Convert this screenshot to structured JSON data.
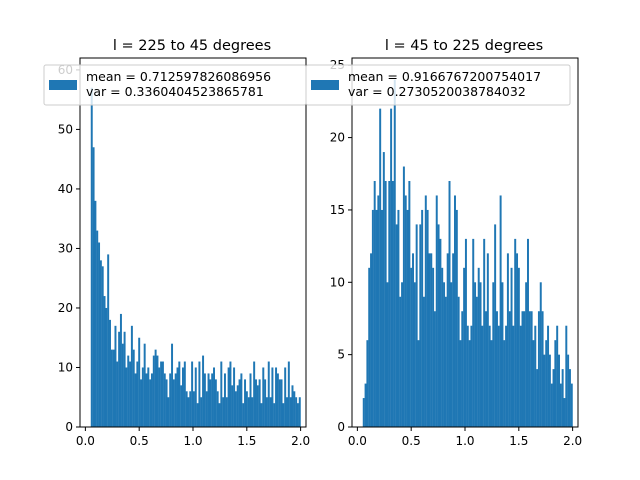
{
  "chart_data": [
    {
      "type": "bar",
      "subtype": "histogram",
      "title": "l = 225 to 45 degrees",
      "xlabel": "",
      "ylabel": "",
      "xlim": [
        -0.05,
        2.05
      ],
      "ylim": [
        0,
        62
      ],
      "xticks": [
        "0.0",
        "0.5",
        "1.0",
        "1.5",
        "2.0"
      ],
      "xtick_values": [
        0,
        0.5,
        1.0,
        1.5,
        2.0
      ],
      "yticks": [
        "0",
        "10",
        "20",
        "30",
        "40",
        "50",
        "60"
      ],
      "ytick_values": [
        0,
        10,
        20,
        30,
        40,
        50,
        60
      ],
      "bin_start": 0.05,
      "bin_end": 2.0,
      "color": "#1f77b4",
      "legend": {
        "placement": "top",
        "entries": [
          "mean = 0.712597826086956",
          "var = 0.3360404523865781"
        ]
      },
      "values": [
        57,
        47,
        38,
        33,
        31,
        28,
        27,
        22,
        20,
        29,
        18,
        13,
        13,
        17,
        11,
        16,
        19,
        14,
        16,
        10,
        12,
        11,
        17,
        13,
        9,
        11,
        15,
        8,
        10,
        14,
        9,
        10,
        8,
        9,
        12,
        13,
        12,
        10,
        11,
        11,
        9,
        8,
        5,
        9,
        14,
        8,
        9,
        10,
        11,
        7,
        10,
        11,
        6,
        5,
        6,
        11,
        6,
        10,
        4,
        11,
        5,
        12,
        9,
        6,
        9,
        8,
        9,
        10,
        8,
        6,
        4,
        11,
        5,
        9,
        5,
        10,
        11,
        7,
        10,
        6,
        7,
        8,
        9,
        4,
        8,
        6,
        5,
        9,
        5,
        11,
        8,
        7,
        8,
        4,
        10,
        8,
        5,
        11,
        5,
        10,
        4,
        10,
        9,
        8,
        8,
        4,
        10,
        5,
        11,
        5,
        7,
        6,
        5,
        4,
        5
      ]
    },
    {
      "type": "bar",
      "subtype": "histogram",
      "title": "l = 45 to 225 degrees",
      "xlabel": "",
      "ylabel": "",
      "xlim": [
        -0.05,
        2.05
      ],
      "ylim": [
        0,
        25.5
      ],
      "xticks": [
        "0.0",
        "0.5",
        "1.0",
        "1.5",
        "2.0"
      ],
      "xtick_values": [
        0,
        0.5,
        1.0,
        1.5,
        2.0
      ],
      "yticks": [
        "0",
        "5",
        "10",
        "15",
        "20",
        "25"
      ],
      "ytick_values": [
        0,
        5,
        10,
        15,
        20,
        25
      ],
      "bin_start": 0.05,
      "bin_end": 2.0,
      "color": "#1f77b4",
      "legend": {
        "placement": "top",
        "entries": [
          "mean = 0.9166767200754017",
          "var = 0.2730520038784032"
        ]
      },
      "values": [
        2,
        3,
        6,
        11,
        12,
        15,
        17,
        15,
        16,
        22,
        15,
        19,
        17,
        10,
        17,
        22,
        17,
        24,
        14,
        15,
        9,
        10,
        18,
        16,
        15,
        17,
        11,
        12,
        10,
        14,
        6,
        14,
        15,
        9,
        16,
        15,
        12,
        12,
        11,
        8,
        16,
        14,
        13,
        11,
        10,
        9,
        12,
        17,
        10,
        12,
        16,
        15,
        9,
        6,
        8,
        11,
        13,
        7,
        6,
        7,
        13,
        10,
        9,
        11,
        10,
        7,
        13,
        8,
        12,
        7,
        6,
        10,
        14,
        8,
        7,
        16,
        10,
        6,
        7,
        12,
        8,
        11,
        7,
        13,
        12,
        11,
        7,
        8,
        8,
        10,
        13,
        8,
        8,
        6,
        7,
        4,
        8,
        10,
        8,
        5,
        6,
        7,
        5,
        3,
        4,
        6,
        7,
        5,
        3,
        4,
        2,
        7,
        5,
        4,
        3
      ]
    }
  ]
}
